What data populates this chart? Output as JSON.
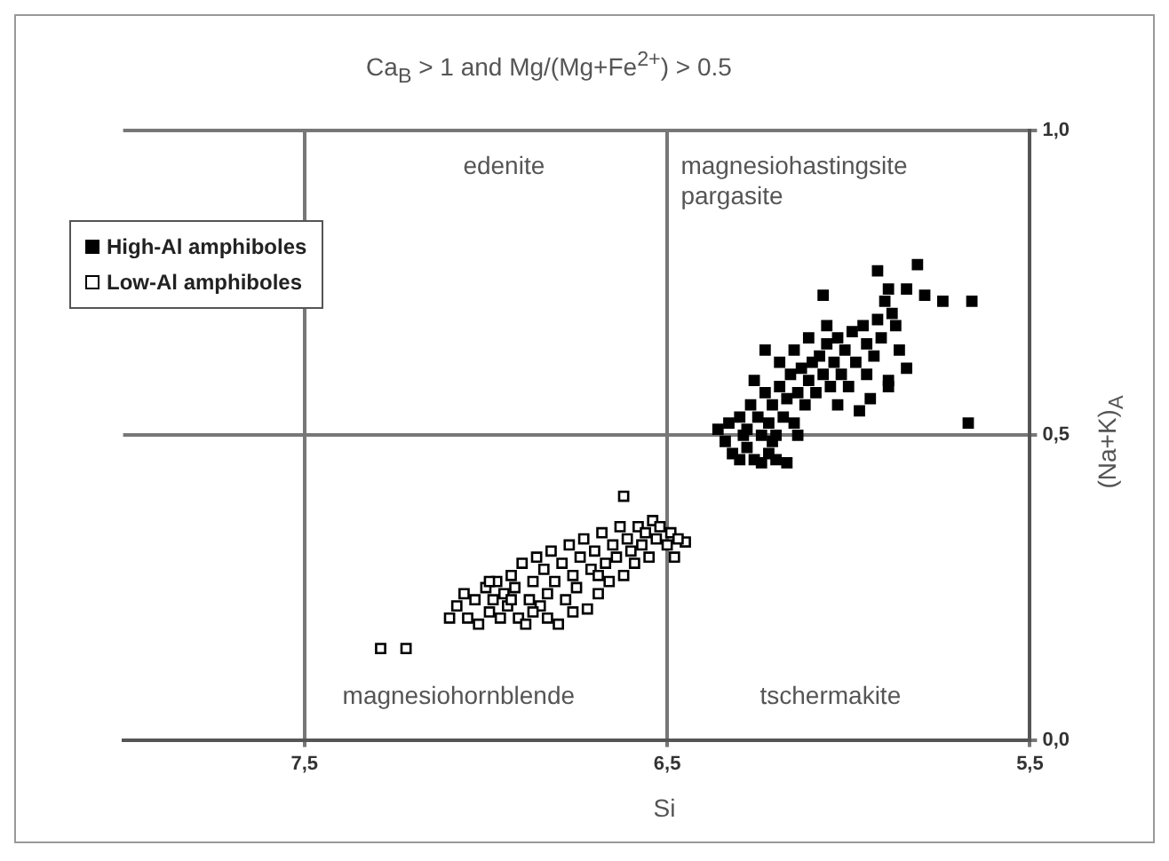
{
  "chart_data": {
    "type": "scatter",
    "title": "Ca$_{B}$ > 1 and Mg/(Mg+Fe$^{2+}$) > 0.5",
    "xlabel": "Si",
    "ylabel": "(Na+K)$_{A}$",
    "xlim": [
      8.0,
      5.5
    ],
    "xticks": [
      {
        "value": 7.5,
        "label": "7,5"
      },
      {
        "value": 6.5,
        "label": "6,5"
      },
      {
        "value": 5.5,
        "label": "5,5"
      }
    ],
    "ylim": [
      0,
      1
    ],
    "yticks": [
      {
        "value": 0,
        "label": "0,0"
      },
      {
        "value": 0.5,
        "label": "0,5"
      },
      {
        "value": 1,
        "label": "1,0"
      }
    ],
    "grid": true,
    "legend": "top left",
    "marker": "square",
    "annotations": [
      "edenite",
      "magnesiohastingsite",
      "pargasite",
      "magnesiohornblende",
      "tschermakite"
    ],
    "series": [
      {
        "name": "High-Al amphiboles",
        "color": "#000000",
        "x": [
          6.36,
          6.34,
          6.32,
          6.3,
          6.28,
          6.26,
          6.24,
          6.22,
          6.2,
          6.17,
          6.3,
          6.28,
          6.27,
          6.25,
          6.24,
          6.23,
          6.22,
          6.21,
          6.2,
          6.19,
          6.18,
          6.17,
          6.16,
          6.15,
          6.14,
          6.13,
          6.12,
          6.11,
          6.1,
          6.09,
          6.08,
          6.07,
          6.06,
          6.05,
          6.04,
          6.03,
          6.02,
          6.01,
          6.0,
          5.99,
          5.98,
          5.97,
          5.96,
          5.95,
          5.94,
          5.93,
          5.92,
          5.91,
          5.89,
          5.89,
          5.88,
          5.87,
          5.86,
          5.84,
          6.23,
          6.07,
          5.92,
          5.81,
          5.89,
          5.84,
          5.79,
          5.74,
          5.66,
          5.67,
          6.26,
          6.21,
          6.14,
          6.29,
          6.33,
          6.19,
          6.11,
          6.03,
          5.95,
          5.9,
          6.15,
          6.06
        ],
        "values": [
          0.51,
          0.49,
          0.47,
          0.46,
          0.48,
          0.46,
          0.455,
          0.47,
          0.46,
          0.455,
          0.53,
          0.51,
          0.55,
          0.53,
          0.5,
          0.57,
          0.52,
          0.55,
          0.5,
          0.58,
          0.53,
          0.56,
          0.6,
          0.52,
          0.57,
          0.61,
          0.55,
          0.59,
          0.62,
          0.57,
          0.63,
          0.6,
          0.65,
          0.58,
          0.62,
          0.66,
          0.6,
          0.64,
          0.58,
          0.67,
          0.62,
          0.54,
          0.68,
          0.65,
          0.56,
          0.63,
          0.69,
          0.66,
          0.59,
          0.58,
          0.7,
          0.68,
          0.64,
          0.61,
          0.64,
          0.73,
          0.77,
          0.78,
          0.74,
          0.74,
          0.73,
          0.72,
          0.72,
          0.52,
          0.59,
          0.49,
          0.5,
          0.5,
          0.52,
          0.62,
          0.66,
          0.55,
          0.6,
          0.72,
          0.64,
          0.68
        ]
      },
      {
        "name": "Low-Al amphiboles",
        "color": "#000000",
        "x": [
          7.29,
          7.22,
          6.62,
          6.45,
          7.1,
          7.08,
          7.06,
          7.05,
          7.03,
          7.02,
          7.0,
          6.99,
          6.98,
          6.97,
          6.96,
          6.95,
          6.94,
          6.93,
          6.92,
          6.91,
          6.9,
          6.89,
          6.88,
          6.87,
          6.86,
          6.85,
          6.84,
          6.83,
          6.82,
          6.81,
          6.8,
          6.79,
          6.78,
          6.77,
          6.76,
          6.75,
          6.74,
          6.73,
          6.72,
          6.71,
          6.7,
          6.69,
          6.68,
          6.67,
          6.66,
          6.65,
          6.64,
          6.63,
          6.62,
          6.61,
          6.6,
          6.59,
          6.58,
          6.57,
          6.56,
          6.55,
          6.54,
          6.53,
          6.52,
          6.5,
          6.49,
          6.48,
          6.47,
          6.87,
          6.93,
          6.76,
          6.69,
          6.99,
          6.83
        ],
        "values": [
          0.15,
          0.15,
          0.4,
          0.325,
          0.2,
          0.22,
          0.24,
          0.2,
          0.23,
          0.19,
          0.25,
          0.21,
          0.23,
          0.26,
          0.2,
          0.24,
          0.22,
          0.27,
          0.25,
          0.2,
          0.29,
          0.19,
          0.23,
          0.26,
          0.3,
          0.22,
          0.28,
          0.24,
          0.31,
          0.26,
          0.19,
          0.29,
          0.23,
          0.32,
          0.27,
          0.25,
          0.3,
          0.33,
          0.215,
          0.28,
          0.31,
          0.24,
          0.34,
          0.29,
          0.26,
          0.32,
          0.3,
          0.35,
          0.27,
          0.33,
          0.31,
          0.29,
          0.35,
          0.32,
          0.34,
          0.3,
          0.36,
          0.33,
          0.35,
          0.32,
          0.34,
          0.3,
          0.33,
          0.21,
          0.23,
          0.21,
          0.27,
          0.26,
          0.2
        ]
      }
    ]
  }
}
